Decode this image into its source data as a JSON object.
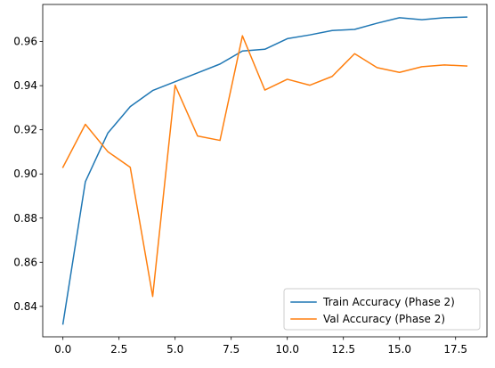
{
  "chart_data": {
    "type": "line",
    "title": "",
    "xlabel": "",
    "ylabel": "",
    "xlim": [
      -0.9,
      18.9
    ],
    "ylim": [
      0.8262,
      0.9768
    ],
    "x_ticks": [
      0.0,
      2.5,
      5.0,
      7.5,
      10.0,
      12.5,
      15.0,
      17.5
    ],
    "x_tick_labels": [
      "0.0",
      "2.5",
      "5.0",
      "7.5",
      "10.0",
      "12.5",
      "15.0",
      "17.5"
    ],
    "y_ticks": [
      0.84,
      0.86,
      0.88,
      0.9,
      0.92,
      0.94,
      0.96
    ],
    "y_tick_labels": [
      "0.84",
      "0.86",
      "0.88",
      "0.90",
      "0.92",
      "0.94",
      "0.96"
    ],
    "grid": false,
    "legend_position": "lower right",
    "x": [
      0,
      1,
      2,
      3,
      4,
      5,
      6,
      7,
      8,
      9,
      10,
      11,
      12,
      13,
      14,
      15,
      16,
      17,
      18
    ],
    "series": [
      {
        "name": "Train Accuracy (Phase 2)",
        "color": "#1f77b4",
        "values": [
          0.832,
          0.8965,
          0.9185,
          0.9305,
          0.9378,
          0.9418,
          0.9458,
          0.9498,
          0.9557,
          0.9565,
          0.9613,
          0.963,
          0.965,
          0.9655,
          0.9683,
          0.9708,
          0.9699,
          0.9708,
          0.9711
        ]
      },
      {
        "name": "Val Accuracy (Phase 2)",
        "color": "#ff7f0e",
        "values": [
          0.903,
          0.9225,
          0.9101,
          0.903,
          0.8445,
          0.9402,
          0.9172,
          0.9152,
          0.9626,
          0.938,
          0.9429,
          0.9402,
          0.9442,
          0.9545,
          0.9482,
          0.946,
          0.9486,
          0.9494,
          0.9489
        ]
      }
    ]
  }
}
